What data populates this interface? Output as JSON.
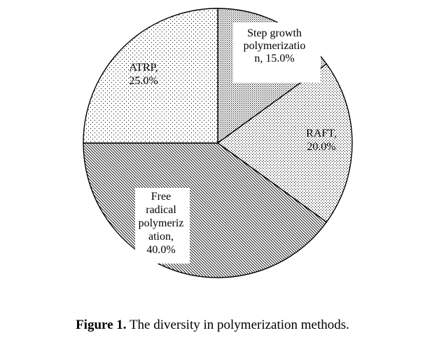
{
  "chart_data": {
    "type": "pie",
    "title": "",
    "slices": [
      {
        "label_lines": [
          "Step growth",
          "polymerizatio",
          "n, 15.0%"
        ],
        "value": 15.0,
        "pattern": "dense-dots"
      },
      {
        "label_lines": [
          "RAFT,",
          "20.0%"
        ],
        "value": 20.0,
        "pattern": "medium-dots"
      },
      {
        "label_lines": [
          "Free",
          "radical",
          "polymeriz",
          "ation,",
          "40.0%"
        ],
        "value": 40.0,
        "pattern": "diagonal-hatch"
      },
      {
        "label_lines": [
          "ATRP,",
          "25.0%"
        ],
        "value": 25.0,
        "pattern": "sparse-dots"
      }
    ],
    "start_angle_deg": 0,
    "direction": "clockwise",
    "colors": {
      "stroke": "#000000",
      "fill": "#ffffff",
      "ink": "#000000"
    }
  },
  "caption": {
    "prefix": "Figure 1.",
    "text": " The diversity in polymerization methods."
  }
}
